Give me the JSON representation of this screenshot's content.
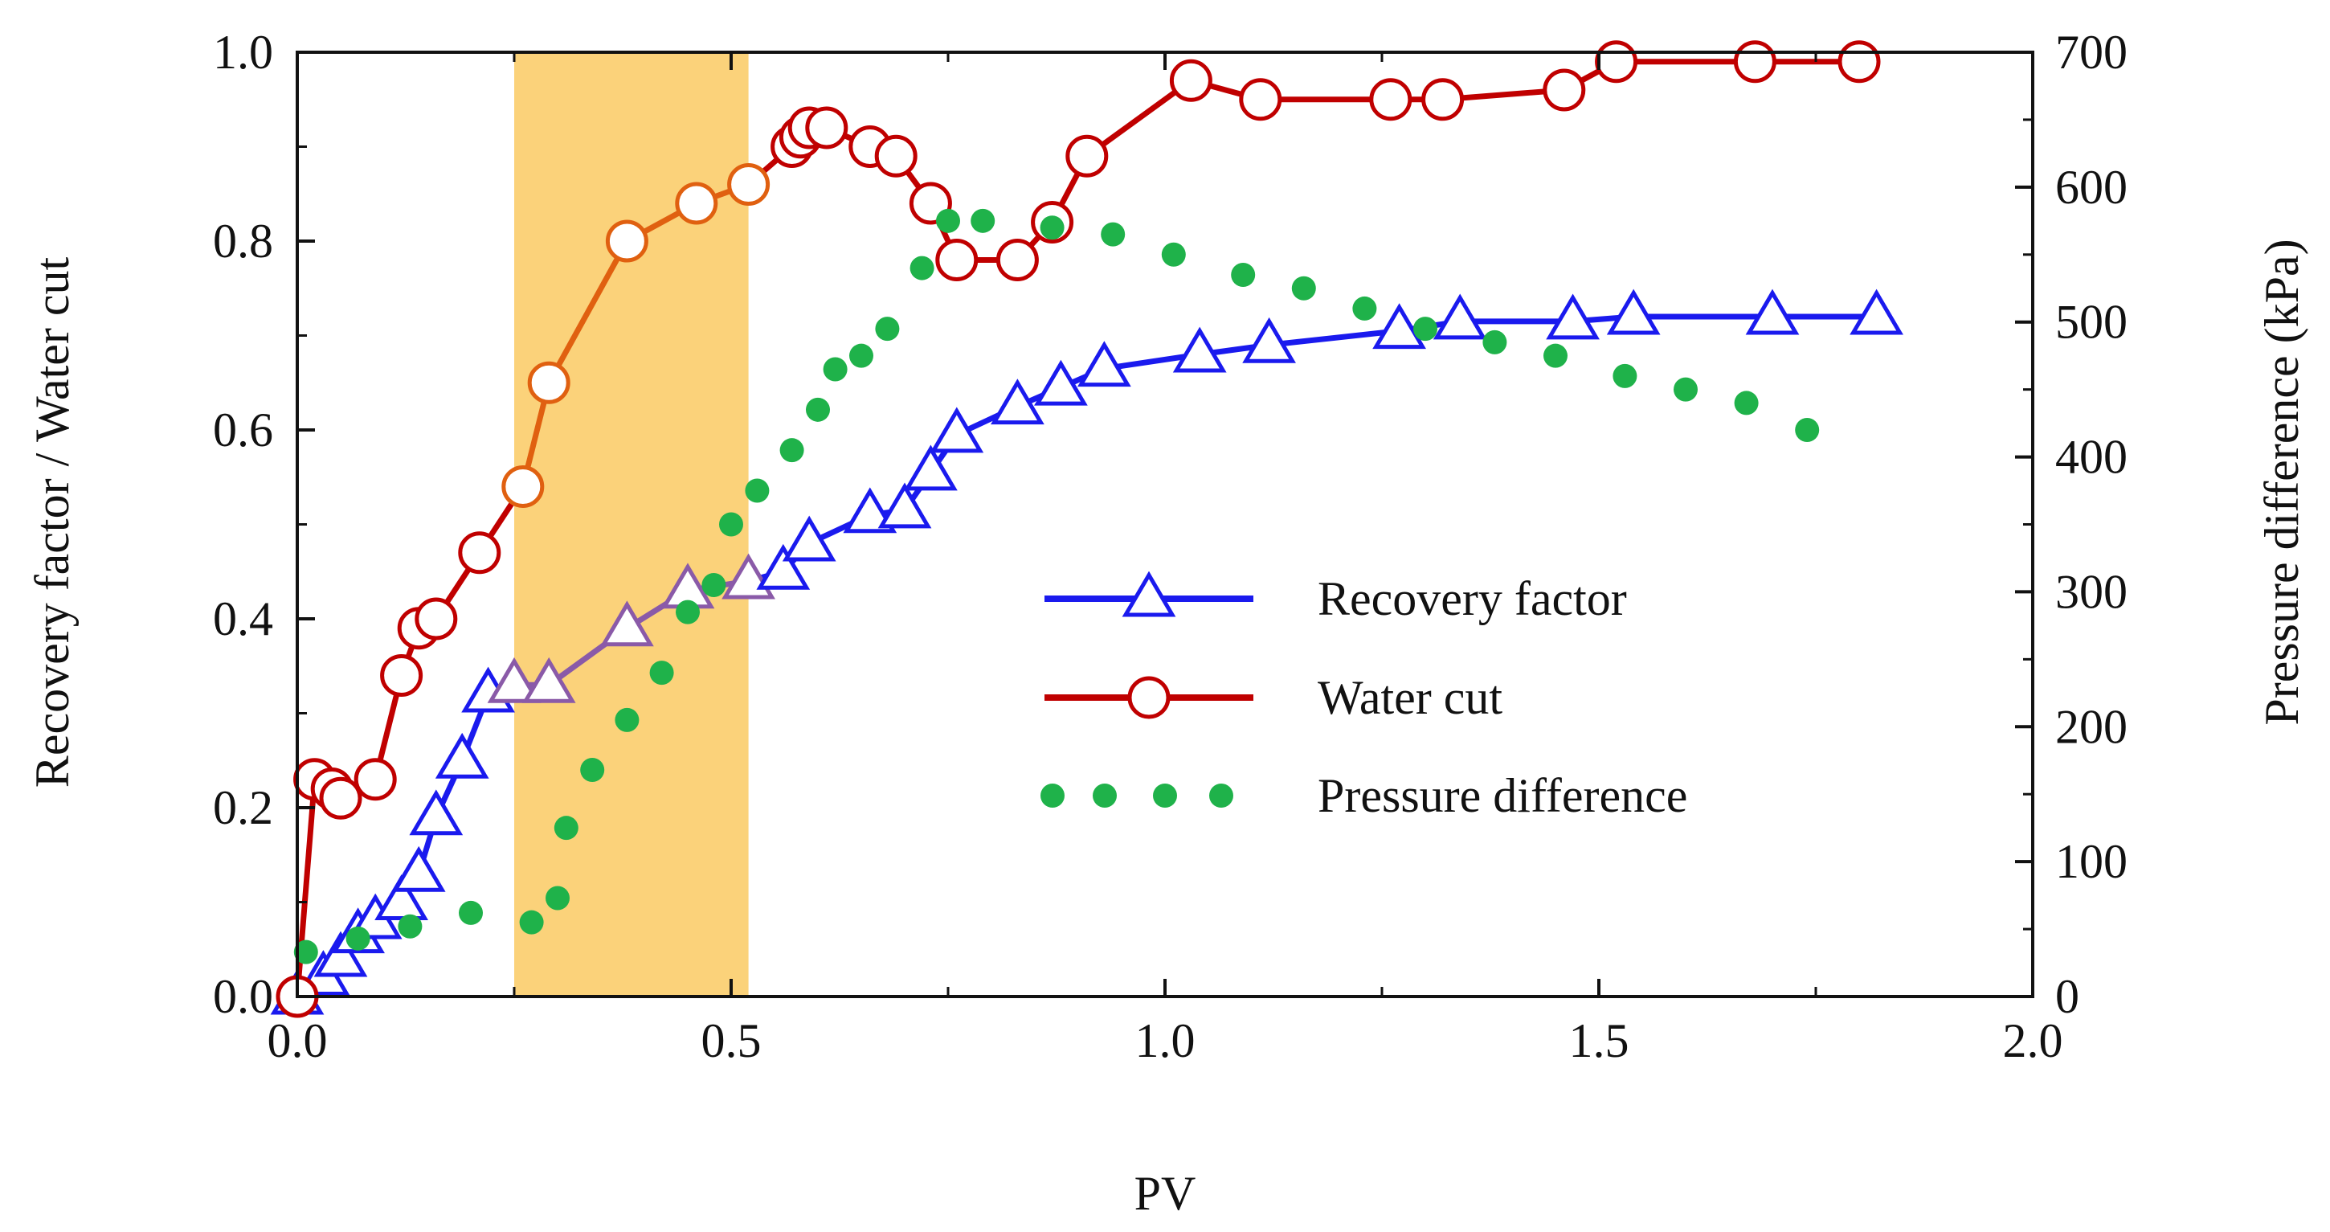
{
  "chart_data": {
    "type": "line",
    "title": "",
    "xlabel": "PV",
    "ylabel_left": "Recovery factor / Water cut",
    "ylabel_right": "Pressure difference (kPa)",
    "xlim": [
      0,
      2.0
    ],
    "ylim_left": [
      0,
      1.0
    ],
    "ylim_right": [
      0,
      700
    ],
    "x_ticks": [
      "0.0",
      "0.5",
      "1.0",
      "1.5",
      "2.0"
    ],
    "y_left_ticks": [
      "0.0",
      "0.2",
      "0.4",
      "0.6",
      "0.8",
      "1.0"
    ],
    "y_right_ticks": [
      "0",
      "100",
      "200",
      "300",
      "400",
      "500",
      "600",
      "700"
    ],
    "grid": false,
    "legend_position": "center-right",
    "highlight_band": {
      "x_from": 0.25,
      "x_to": 0.52,
      "color": "#fbd27a"
    },
    "series": [
      {
        "name": "Recovery factor",
        "axis": "left",
        "marker": "triangle-open",
        "color": "#1a1aee",
        "color_in_band": "#8a5aa8",
        "x": [
          0.0,
          0.03,
          0.05,
          0.07,
          0.09,
          0.12,
          0.14,
          0.16,
          0.19,
          0.22,
          0.25,
          0.29,
          0.38,
          0.45,
          0.52,
          0.56,
          0.59,
          0.66,
          0.7,
          0.73,
          0.76,
          0.83,
          0.88,
          0.93,
          1.04,
          1.12,
          1.27,
          1.34,
          1.47,
          1.54,
          1.7,
          1.82
        ],
        "values": [
          0.0,
          0.02,
          0.04,
          0.065,
          0.08,
          0.1,
          0.13,
          0.19,
          0.25,
          0.32,
          0.33,
          0.33,
          0.39,
          0.43,
          0.44,
          0.45,
          0.48,
          0.51,
          0.515,
          0.555,
          0.595,
          0.625,
          0.645,
          0.665,
          0.68,
          0.69,
          0.705,
          0.715,
          0.715,
          0.72,
          0.72,
          0.72
        ]
      },
      {
        "name": "Water cut",
        "axis": "left",
        "marker": "circle-open",
        "color": "#c00000",
        "color_in_band": "#e06010",
        "x": [
          0.0,
          0.02,
          0.04,
          0.05,
          0.09,
          0.12,
          0.14,
          0.16,
          0.21,
          0.26,
          0.29,
          0.38,
          0.46,
          0.52,
          0.57,
          0.58,
          0.59,
          0.61,
          0.66,
          0.69,
          0.73,
          0.76,
          0.83,
          0.87,
          0.91,
          1.03,
          1.11,
          1.26,
          1.32,
          1.46,
          1.52,
          1.68,
          1.8
        ],
        "values": [
          0.0,
          0.23,
          0.22,
          0.21,
          0.23,
          0.34,
          0.39,
          0.4,
          0.47,
          0.54,
          0.65,
          0.8,
          0.84,
          0.86,
          0.9,
          0.91,
          0.92,
          0.92,
          0.9,
          0.89,
          0.84,
          0.78,
          0.78,
          0.82,
          0.89,
          0.97,
          0.95,
          0.95,
          0.95,
          0.96,
          0.99,
          0.99,
          0.99
        ]
      },
      {
        "name": "Pressure difference",
        "axis": "right",
        "marker": "dot",
        "color": "#1fb24a",
        "x": [
          0.01,
          0.07,
          0.13,
          0.2,
          0.27,
          0.3,
          0.31,
          0.34,
          0.38,
          0.42,
          0.45,
          0.48,
          0.5,
          0.53,
          0.57,
          0.6,
          0.62,
          0.65,
          0.68,
          0.72,
          0.75,
          0.79,
          0.87,
          0.94,
          1.01,
          1.09,
          1.16,
          1.23,
          1.3,
          1.38,
          1.45,
          1.53,
          1.6,
          1.67,
          1.74
        ],
        "values": [
          33,
          43,
          52,
          62,
          55,
          73,
          125,
          168,
          205,
          240,
          285,
          305,
          350,
          375,
          405,
          435,
          465,
          475,
          495,
          540,
          575,
          575,
          570,
          565,
          550,
          535,
          525,
          510,
          495,
          485,
          475,
          460,
          450,
          440,
          420
        ]
      }
    ],
    "legend": [
      {
        "label": "Recovery factor",
        "marker": "triangle-open",
        "color": "#1a1aee"
      },
      {
        "label": "Water cut",
        "marker": "circle-open",
        "color": "#c00000"
      },
      {
        "label": "Pressure difference",
        "marker": "dot",
        "color": "#1fb24a"
      }
    ]
  }
}
